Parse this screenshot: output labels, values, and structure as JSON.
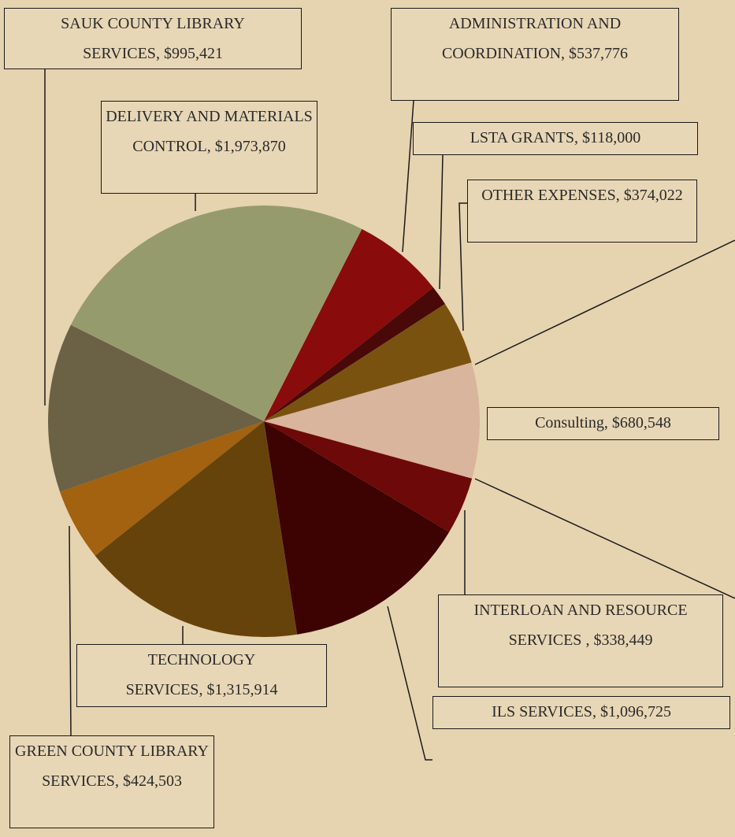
{
  "chart_data": {
    "type": "pie",
    "categories": [
      "ADMINISTRATION AND COORDINATION",
      "LSTA GRANTS",
      "OTHER EXPENSES",
      "Consulting",
      "INTERLOAN AND RESOURCE SERVICES ",
      "ILS SERVICES",
      "TECHNOLOGY SERVICES",
      "GREEN COUNTY LIBRARY SERVICES",
      "SAUK COUNTY LIBRARY SERVICES",
      "DELIVERY AND MATERIALS CONTROL"
    ],
    "values": [
      537776,
      118000,
      374022,
      680548,
      338449,
      1096725,
      1315914,
      424503,
      995421,
      1973870
    ],
    "value_labels": [
      "$537,776",
      "$118,000",
      "$374,022",
      "$680,548",
      "$338,449",
      "$1,096,725",
      "$1,315,914",
      "$424,503",
      "$995,421",
      "$1,973,870"
    ],
    "colors": [
      "#8a0b0b",
      "#4a0909",
      "#7a5210",
      "#d9b59d",
      "#6e0909",
      "#3d0202",
      "#66430b",
      "#a2620f",
      "#6b6145",
      "#969b6d"
    ]
  }
}
